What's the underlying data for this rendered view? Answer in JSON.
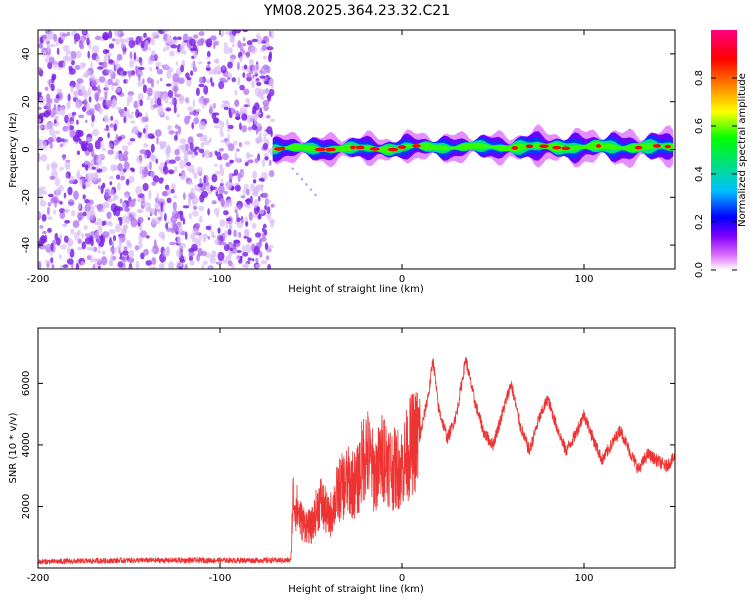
{
  "title": "YM08.2025.364.23.32.C21",
  "colors": {
    "snr_line": "#ee3333",
    "scatter": "#8a2be2"
  },
  "chart_data": [
    {
      "type": "heatmap",
      "title": "YM08.2025.364.23.32.C21",
      "xlabel": "Height of straight line (km)",
      "ylabel": "Frequency (Hz)",
      "xlim": [
        -200,
        150
      ],
      "ylim": [
        -50,
        50
      ],
      "xticks": [
        -200,
        -100,
        0,
        100
      ],
      "yticks": [
        -40,
        -20,
        0,
        20,
        40
      ],
      "colorbar": {
        "label": "Normalized spectral amplitude",
        "range": [
          0.0,
          1.0
        ],
        "ticks": [
          "0.0",
          "0.2",
          "0.4",
          "0.6",
          "0.8"
        ],
        "colormap": [
          "#ffffff",
          "#e070ff",
          "#8000ff",
          "#0000ff",
          "#00c0ff",
          "#00e080",
          "#00ff00",
          "#ffff00",
          "#ff8000",
          "#ff0000",
          "#ff0080"
        ]
      },
      "noise_region_x": [
        -200,
        -71
      ],
      "noise_amplitude_range": [
        0.0,
        0.15
      ],
      "signal_band": {
        "x_start": -71,
        "x_end": 150,
        "freq_center_hz": 1,
        "freq_halfwidth_hz": 3,
        "peak_amplitude": 0.9
      }
    },
    {
      "type": "line",
      "xlabel": "Height of straight line (km)",
      "ylabel": "SNR (10 * v/v)",
      "xlim": [
        -200,
        150
      ],
      "ylim": [
        0,
        7800
      ],
      "xticks": [
        -200,
        -100,
        0,
        100
      ],
      "yticks": [
        2000,
        4000,
        6000
      ],
      "series": [
        {
          "name": "SNR",
          "x": [
            -200,
            -150,
            -100,
            -61,
            -60,
            -55,
            -50,
            -45,
            -40,
            -35,
            -30,
            -25,
            -20,
            -15,
            -10,
            -5,
            0,
            5,
            10,
            15,
            17,
            20,
            25,
            30,
            35,
            40,
            45,
            50,
            55,
            60,
            65,
            70,
            75,
            80,
            85,
            90,
            95,
            100,
            105,
            110,
            115,
            120,
            125,
            130,
            135,
            140,
            145,
            150
          ],
          "values": [
            200,
            250,
            250,
            250,
            2300,
            1500,
            1300,
            2200,
            1600,
            2500,
            2800,
            2700,
            3900,
            3000,
            3700,
            3200,
            3300,
            4000,
            4300,
            5800,
            6800,
            5200,
            4200,
            5000,
            6800,
            5400,
            4400,
            4000,
            5000,
            6000,
            4600,
            3800,
            4800,
            5500,
            4600,
            3800,
            4300,
            5000,
            4200,
            3500,
            4000,
            4500,
            3800,
            3200,
            3700,
            3500,
            3300,
            3600
          ]
        }
      ]
    }
  ]
}
